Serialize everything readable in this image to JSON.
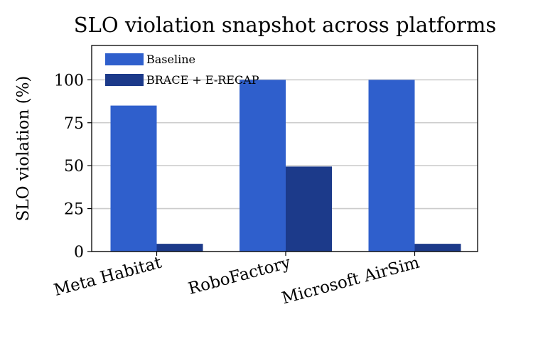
{
  "chart_data": {
    "type": "bar",
    "title": "SLO violation snapshot across platforms",
    "xlabel": "",
    "ylabel": "SLO violation (%)",
    "categories": [
      "Meta Habitat",
      "RoboFactory",
      "Microsoft AirSim"
    ],
    "series": [
      {
        "name": "Baseline",
        "values": [
          85,
          100,
          100
        ]
      },
      {
        "name": "BRACE + E-RECAP",
        "values": [
          4.5,
          49.5,
          4.5
        ]
      }
    ],
    "ylim": [
      0,
      120
    ],
    "yticks": [
      0,
      25,
      50,
      75,
      100
    ],
    "grid": "horizontal",
    "legend": "top-left",
    "colors": {
      "Baseline": "#2f5fcc",
      "BRACE + E-RECAP": "#1c3a8a",
      "grid": "#cccccc"
    }
  }
}
